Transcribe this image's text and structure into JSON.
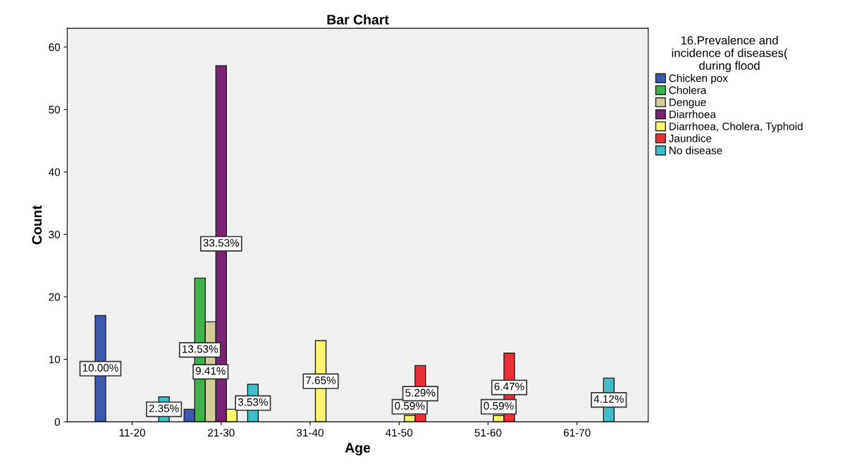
{
  "chart_data": {
    "type": "bar",
    "title": "Bar Chart",
    "xlabel": "Age",
    "ylabel": "Count",
    "legend_title": "16.Prevalence and\nincidence of diseases(\nduring flood",
    "categories": [
      "11-20",
      "21-30",
      "31-40",
      "41-50",
      "51-60",
      "61-70"
    ],
    "series": [
      {
        "name": "Chicken pox",
        "color": "#3e58ac",
        "values": [
          17,
          2,
          null,
          null,
          null,
          null
        ]
      },
      {
        "name": "Cholera",
        "color": "#3cb44a",
        "values": [
          null,
          23,
          null,
          null,
          null,
          null
        ]
      },
      {
        "name": "Dengue",
        "color": "#d4cc98",
        "values": [
          null,
          16,
          null,
          null,
          null,
          null
        ]
      },
      {
        "name": "Diarrhoea",
        "color": "#7b2272",
        "values": [
          null,
          57,
          null,
          null,
          null,
          null
        ]
      },
      {
        "name": "Diarrhoea, Cholera, Typhoid",
        "color": "#fbf870",
        "values": [
          null,
          2,
          13,
          1,
          1,
          null
        ]
      },
      {
        "name": "Jaundice",
        "color": "#e8303a",
        "values": [
          null,
          null,
          null,
          9,
          11,
          null
        ]
      },
      {
        "name": "No disease",
        "color": "#40bfc8",
        "values": [
          4,
          6,
          null,
          null,
          null,
          7
        ]
      }
    ],
    "annotations": [
      "10.00%",
      "2.35%",
      "13.53%",
      "9.41%",
      "33.53%",
      "3.53%",
      "7.65%",
      "0.59%",
      "5.29%",
      "0.59%",
      "6.47%",
      "4.12%"
    ],
    "ylim": [
      0,
      63
    ],
    "yticks": [
      0,
      10,
      20,
      30,
      40,
      50,
      60
    ],
    "grid": false,
    "legend": "right"
  }
}
